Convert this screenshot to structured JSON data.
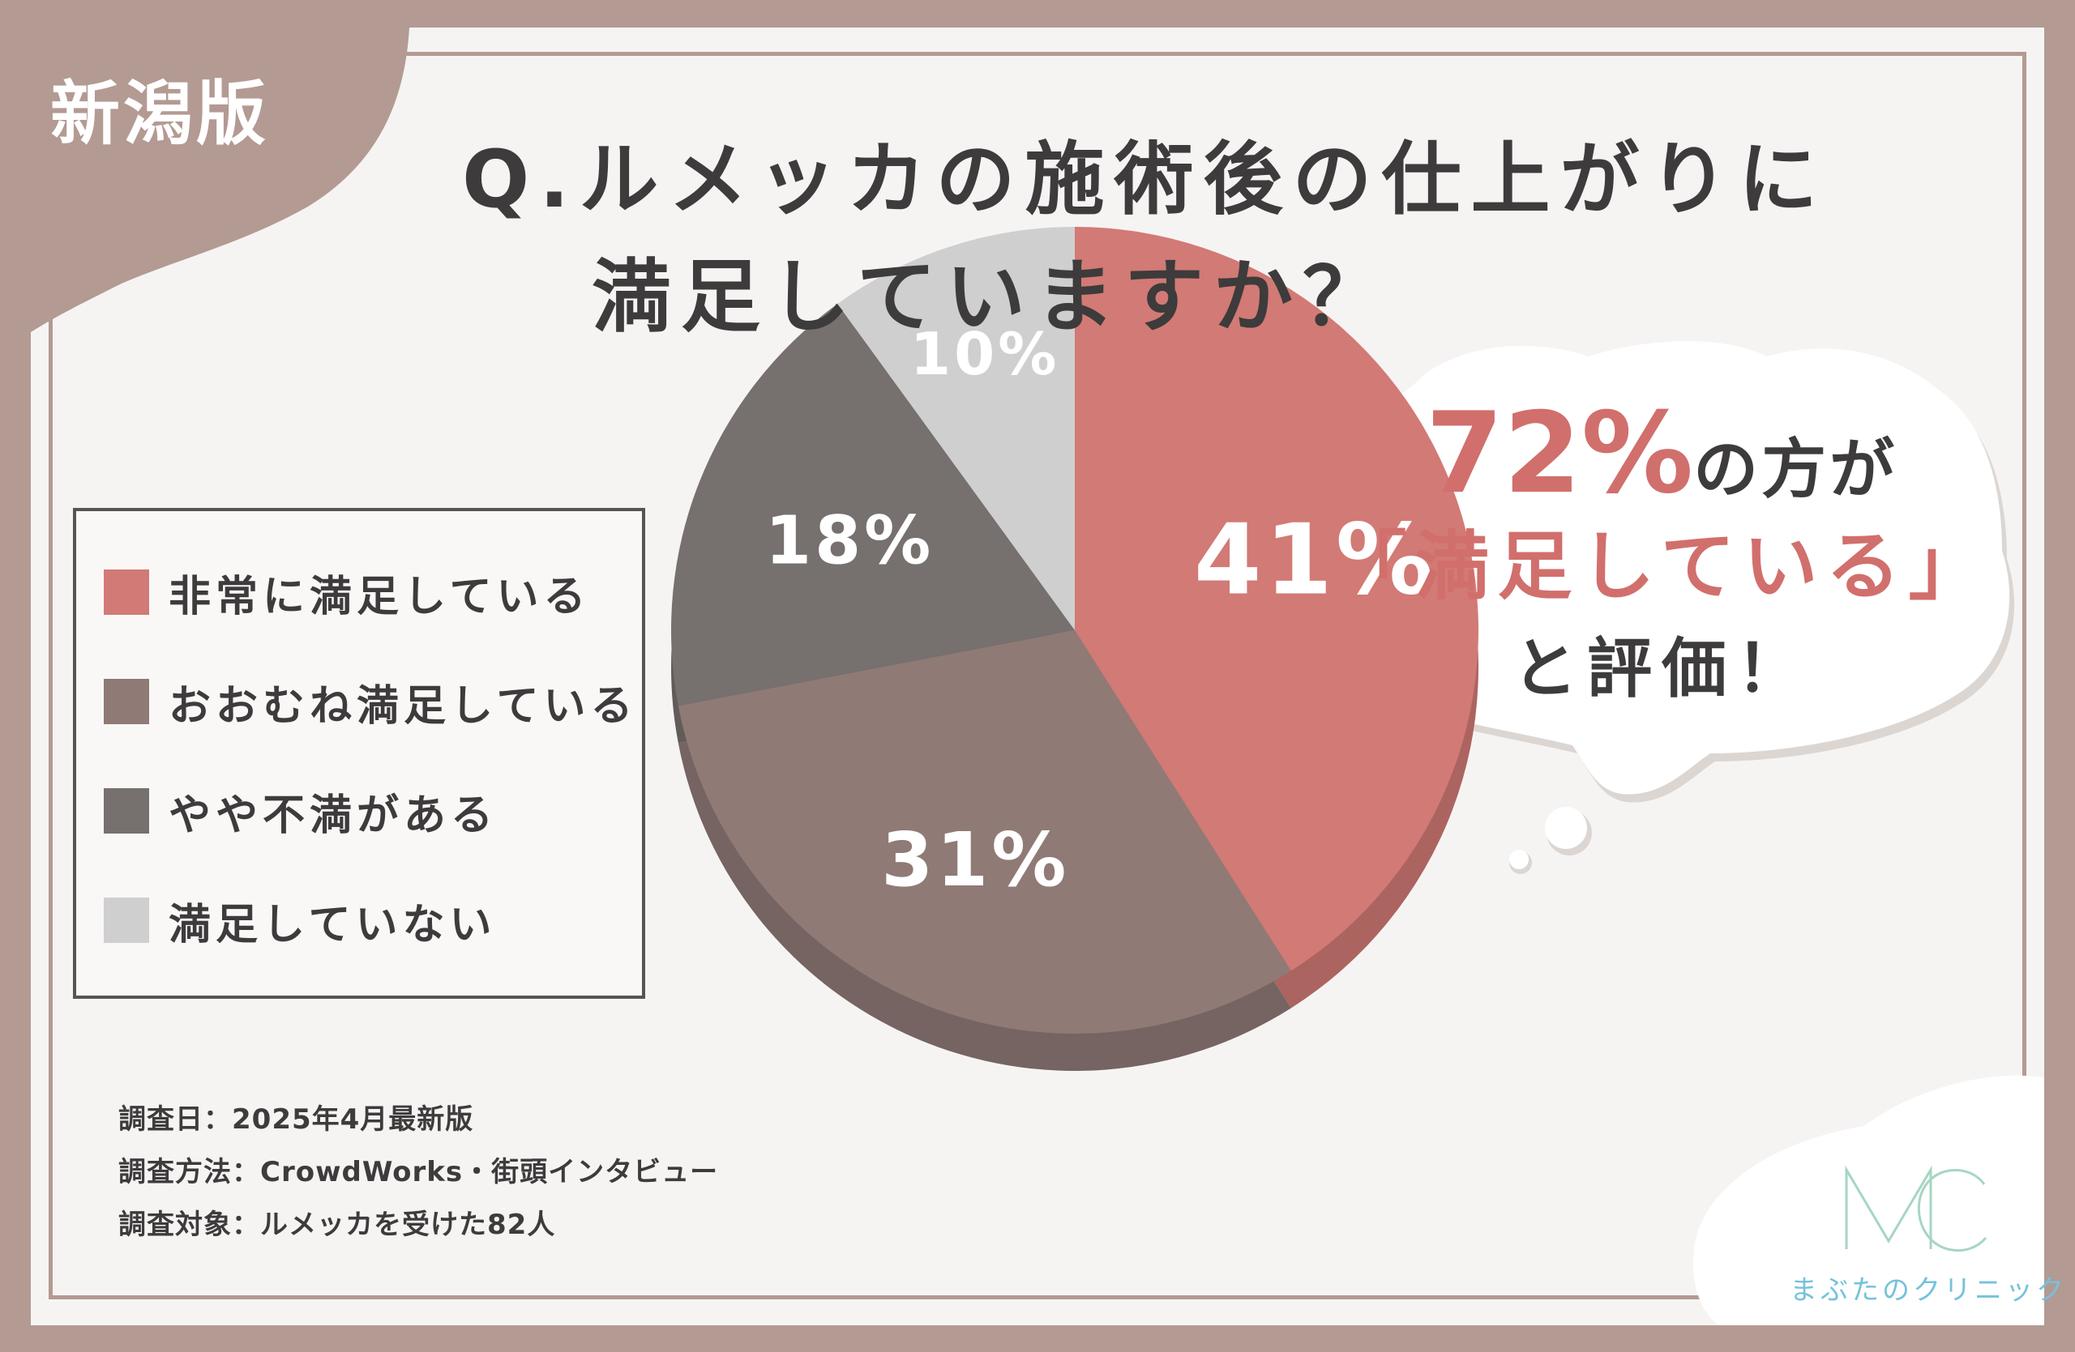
{
  "edition_label": "新潟版",
  "title": {
    "line1": "Q.ルメッカの施術後の仕上がりに",
    "line2": "満足していますか？"
  },
  "legend": [
    {
      "label": "非常に満足している",
      "color": "#d27a75"
    },
    {
      "label": "おおむね満足している",
      "color": "#8f7a76"
    },
    {
      "label": "やや不満がある",
      "color": "#76706e"
    },
    {
      "label": "満足していない",
      "color": "#d0cfcf"
    }
  ],
  "callout": {
    "highlight_value": "72%",
    "line1_suffix": "の方が",
    "line2": "「満足している」",
    "line3": "と評価！"
  },
  "survey_notes": {
    "date": "調査日：2025年4月最新版",
    "method": "調査方法：CrowdWorks・街頭インタビュー",
    "subjects": "調査対象：ルメッカを受けた82人"
  },
  "logo": {
    "mark": "MC",
    "name": "まぶたのクリニック"
  },
  "colors": {
    "frame": "#b39a93",
    "accent": "#d16f6c",
    "text": "#3d3b3b",
    "logo": "#76c2dc"
  },
  "chart_data": {
    "type": "pie",
    "categories": [
      "非常に満足している",
      "おおむね満足している",
      "やや不満がある",
      "満足していない"
    ],
    "values": [
      41,
      31,
      18,
      10
    ],
    "labels": [
      "41%",
      "31%",
      "18%",
      "10%"
    ],
    "colors": [
      "#d27a75",
      "#8f7a76",
      "#76706e",
      "#d0cfcf"
    ],
    "unit": "%",
    "start": "12 o'clock, clockwise",
    "legend_position": "left"
  }
}
